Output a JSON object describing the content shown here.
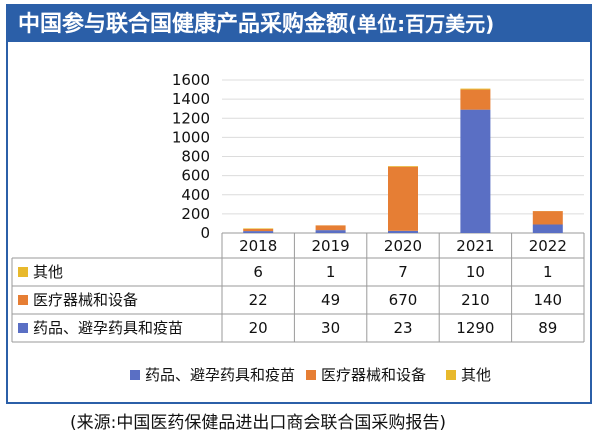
{
  "title": {
    "main": "中国参与联合国健康产品采购金额",
    "unit": "(单位:百万美元)"
  },
  "source": "(来源:中国医药保健品进出口商会联合国采购报告)",
  "colors": {
    "header_bg": "#2b5fa8",
    "frame": "#2b5fa8",
    "series_drugs": "#5a6fc4",
    "series_devices": "#e67e34",
    "series_other": "#e8b92c"
  },
  "chart_data": {
    "type": "bar",
    "stacked": true,
    "categories": [
      "2018",
      "2019",
      "2020",
      "2021",
      "2022"
    ],
    "series": [
      {
        "name": "药品、避孕药具和疫苗",
        "values": [
          20,
          30,
          23,
          1290,
          89
        ]
      },
      {
        "name": "医疗器械和设备",
        "values": [
          22,
          49,
          670,
          210,
          140
        ]
      },
      {
        "name": "其他",
        "values": [
          6,
          1,
          7,
          10,
          1
        ]
      }
    ],
    "yticks": [
      "0",
      "200",
      "400",
      "600",
      "800",
      "1000",
      "1200",
      "1400",
      "1600"
    ],
    "ylim": [
      0,
      1600
    ],
    "grid": true,
    "legend": "bottom",
    "table_row_order": [
      "其他",
      "医疗器械和设备",
      "药品、避孕药具和疫苗"
    ]
  }
}
